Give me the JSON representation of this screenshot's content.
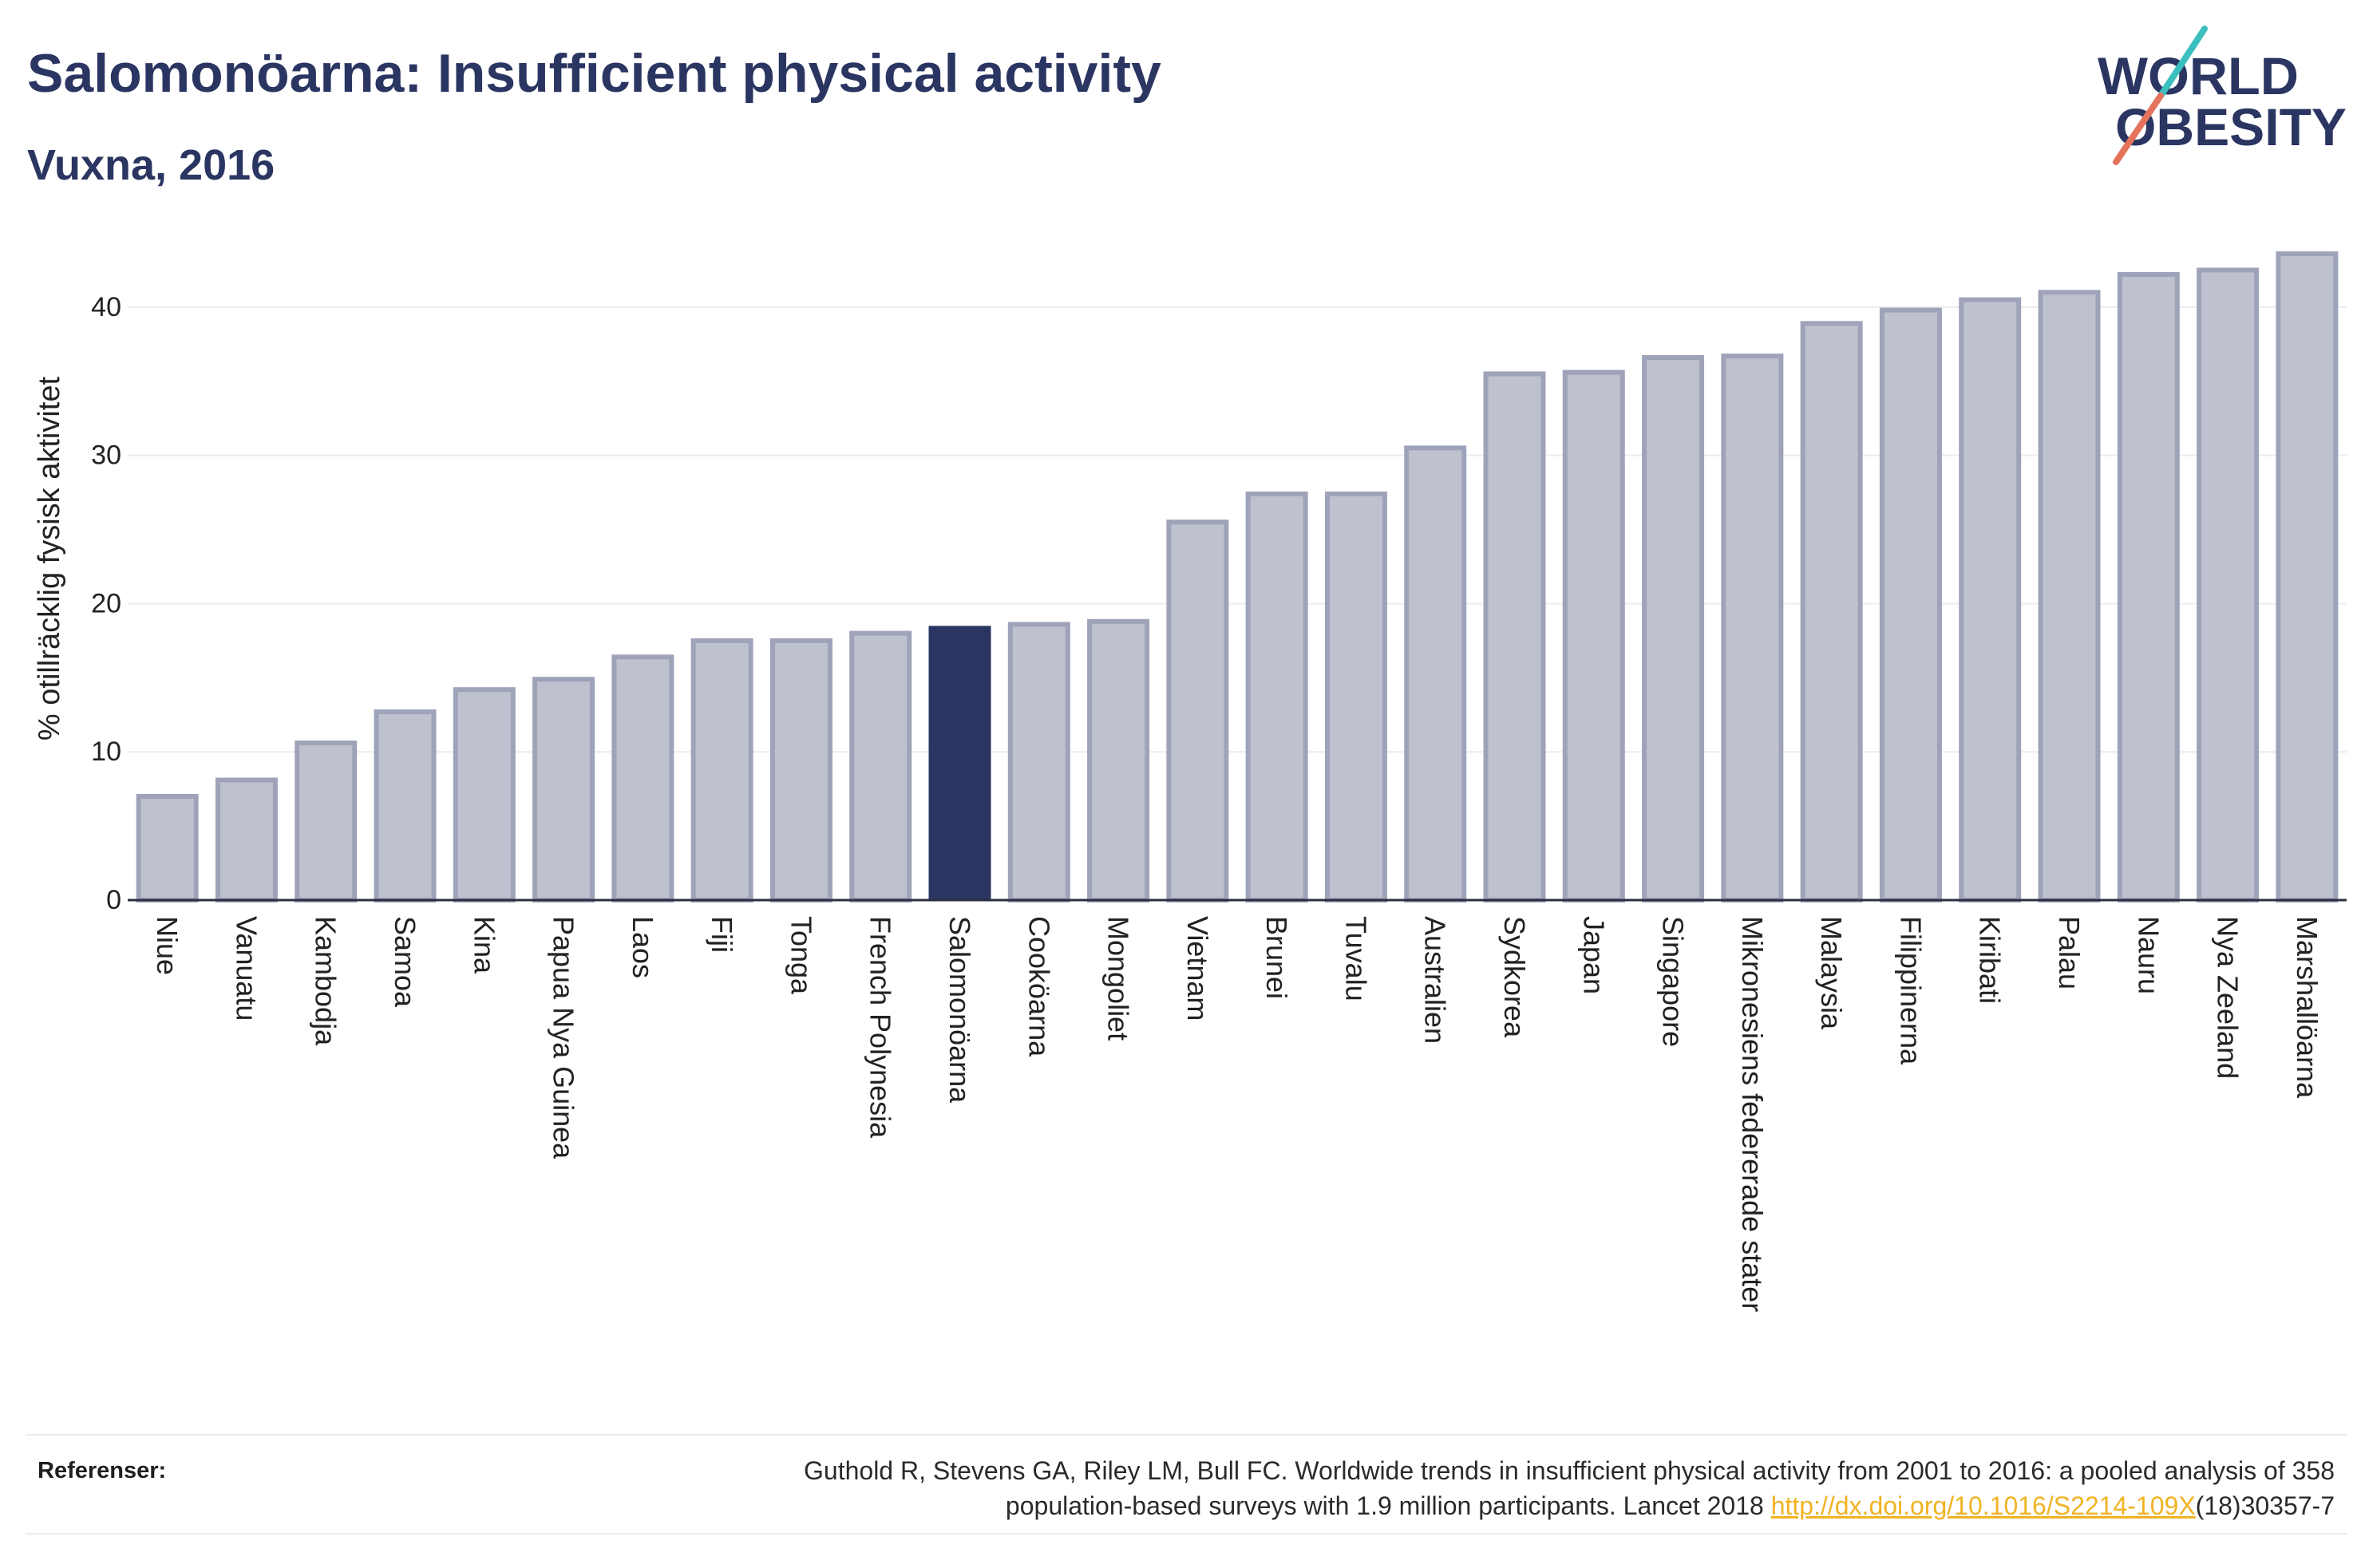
{
  "title": "Salomonöarna: Insufficient physical activity",
  "subtitle": "Vuxna, 2016",
  "logo": {
    "line1": "WORLD",
    "line2": "OBESITY",
    "colors": {
      "text": "#2b3562",
      "slash_top": "#3bbfbf",
      "slash_bottom": "#e5735c"
    }
  },
  "chart_data": {
    "type": "bar",
    "ylabel": "% otillräcklig fysisk aktivitet",
    "categories": [
      "Niue",
      "Vanuatu",
      "Kambodja",
      "Samoa",
      "Kina",
      "Papua Nya Guinea",
      "Laos",
      "Fiji",
      "Tonga",
      "French Polynesia",
      "Salomonöarna",
      "Cooköarna",
      "Mongoliet",
      "Vietnam",
      "Brunei",
      "Tuvalu",
      "Australien",
      "Sydkorea",
      "Japan",
      "Singapore",
      "Mikronesiens federerade stater",
      "Malaysia",
      "Filippinerna",
      "Kiribati",
      "Palau",
      "Nauru",
      "Nya Zeeland",
      "Marshallöarna"
    ],
    "values": [
      7.0,
      8.1,
      10.6,
      12.7,
      14.2,
      14.9,
      16.4,
      17.5,
      17.5,
      18.0,
      18.5,
      18.6,
      18.8,
      25.5,
      27.4,
      27.4,
      30.5,
      35.5,
      35.6,
      36.6,
      36.7,
      38.9,
      39.8,
      40.5,
      41.0,
      42.2,
      42.5,
      43.6
    ],
    "highlight": "Salomonöarna",
    "ylim": [
      0,
      45
    ],
    "yticks": [
      0,
      10,
      20,
      30,
      40
    ],
    "grid": true,
    "legend": "none",
    "colors": {
      "bar": "#bec1ce",
      "bar_outline": "#9fa3b9",
      "highlight": "#2b3562",
      "grid": "#ebebf0",
      "axis": "#2b3040"
    }
  },
  "references": {
    "label": "Referenser:",
    "line1": "Guthold R, Stevens GA, Riley LM, Bull FC. Worldwide trends in insufficient physical activity from 2001 to 2016: a pooled analysis of 358",
    "line2": "population-based surveys with 1.9 million participants. Lancet 2018 ",
    "link": "http://dx.doi.org/10.1016/S2214-109X",
    "suffix": "(18)30357-7",
    "link_color": "#f0b323"
  }
}
